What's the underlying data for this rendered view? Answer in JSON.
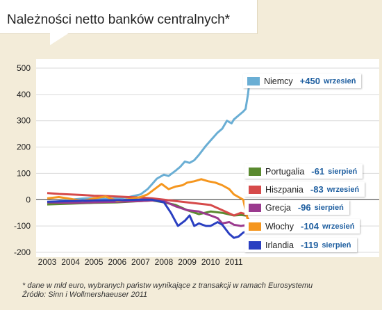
{
  "title": "Należności netto banków centralnych*",
  "footnote": {
    "line1": "* dane w mld  euro, wybranych państw wynikające z transakcji w ramach Eurosystemu",
    "line2": "Źródło: Sinn i Wollmershaeuser 2011"
  },
  "chart_data": {
    "type": "line",
    "title": "Należności netto banków centralnych*",
    "xlabel": "",
    "ylabel": "",
    "ylim": [
      -200,
      500
    ],
    "xlim": [
      2003.0,
      2011.75
    ],
    "y_ticks": [
      500,
      400,
      300,
      200,
      100,
      0,
      -100,
      -200
    ],
    "x_tick_labels": [
      "2003",
      "2004",
      "2005",
      "2006",
      "2007",
      "2008",
      "2009",
      "2010",
      "2011"
    ],
    "grid": true,
    "legend_position": "right",
    "series": [
      {
        "name": "Niemcy",
        "value_label": "+450",
        "month_label": "wrzesień",
        "color": "#6aaed4",
        "x": [
          2003.0,
          2003.5,
          2004.0,
          2004.5,
          2005.0,
          2005.5,
          2006.0,
          2006.5,
          2007.0,
          2007.3,
          2007.5,
          2007.7,
          2008.0,
          2008.2,
          2008.5,
          2008.7,
          2008.9,
          2009.1,
          2009.3,
          2009.5,
          2009.8,
          2010.0,
          2010.3,
          2010.5,
          2010.7,
          2010.9,
          2011.0,
          2011.2,
          2011.4,
          2011.5,
          2011.6,
          2011.67
        ],
        "y": [
          -10,
          -6,
          0,
          4,
          6,
          3,
          5,
          10,
          20,
          40,
          60,
          80,
          95,
          90,
          110,
          125,
          145,
          140,
          150,
          170,
          205,
          225,
          255,
          270,
          300,
          290,
          305,
          320,
          335,
          345,
          400,
          450
        ]
      },
      {
        "name": "Portugalia",
        "value_label": "-61",
        "month_label": "sierpień",
        "color": "#5a8a2f",
        "x": [
          2003.0,
          2004.0,
          2005.0,
          2006.0,
          2007.0,
          2007.5,
          2008.0,
          2008.5,
          2009.0,
          2009.5,
          2010.0,
          2010.5,
          2011.0,
          2011.3,
          2011.58
        ],
        "y": [
          -18,
          -15,
          -12,
          -10,
          -5,
          -3,
          -10,
          -20,
          -40,
          -55,
          -45,
          -50,
          -60,
          -58,
          -61
        ]
      },
      {
        "name": "Hiszpania",
        "value_label": "-83",
        "month_label": "wrzesień",
        "color": "#d64a4a",
        "x": [
          2003.0,
          2003.5,
          2004.0,
          2004.5,
          2005.0,
          2005.5,
          2006.0,
          2006.5,
          2007.0,
          2007.5,
          2008.0,
          2008.5,
          2009.0,
          2009.5,
          2010.0,
          2010.5,
          2011.0,
          2011.3,
          2011.5,
          2011.67
        ],
        "y": [
          25,
          22,
          20,
          18,
          15,
          14,
          12,
          10,
          8,
          5,
          0,
          -5,
          -10,
          -15,
          -20,
          -40,
          -60,
          -50,
          -55,
          -83
        ]
      },
      {
        "name": "Grecja",
        "value_label": "-96",
        "month_label": "sierpień",
        "color": "#9a3a8e",
        "x": [
          2003.0,
          2004.0,
          2005.0,
          2006.0,
          2007.0,
          2007.5,
          2008.0,
          2008.5,
          2009.0,
          2009.5,
          2010.0,
          2010.3,
          2010.5,
          2010.8,
          2011.0,
          2011.3,
          2011.58
        ],
        "y": [
          -10,
          -12,
          -10,
          -8,
          -5,
          -3,
          -5,
          -25,
          -40,
          -45,
          -60,
          -70,
          -90,
          -85,
          -95,
          -100,
          -96
        ]
      },
      {
        "name": "Włochy",
        "value_label": "-104",
        "month_label": "wrzesień",
        "color": "#f5961e",
        "x": [
          2003.0,
          2003.5,
          2004.0,
          2004.5,
          2005.0,
          2005.5,
          2006.0,
          2006.5,
          2007.0,
          2007.3,
          2007.6,
          2007.9,
          2008.2,
          2008.5,
          2008.8,
          2009.0,
          2009.3,
          2009.6,
          2009.9,
          2010.2,
          2010.5,
          2010.8,
          2011.0,
          2011.2,
          2011.4,
          2011.55,
          2011.67
        ],
        "y": [
          5,
          10,
          3,
          -5,
          5,
          12,
          -5,
          2,
          10,
          20,
          40,
          60,
          40,
          50,
          55,
          65,
          70,
          78,
          70,
          65,
          55,
          40,
          20,
          10,
          0,
          -60,
          -104
        ]
      },
      {
        "name": "Irlandia",
        "value_label": "-119",
        "month_label": "sierpień",
        "color": "#2a3fc1",
        "x": [
          2003.0,
          2004.0,
          2005.0,
          2006.0,
          2007.0,
          2007.5,
          2008.0,
          2008.3,
          2008.6,
          2008.9,
          2009.1,
          2009.3,
          2009.5,
          2009.8,
          2010.0,
          2010.3,
          2010.5,
          2010.8,
          2011.0,
          2011.2,
          2011.4,
          2011.58
        ],
        "y": [
          -8,
          -5,
          -3,
          -2,
          0,
          0,
          -10,
          -50,
          -100,
          -80,
          -60,
          -100,
          -90,
          -100,
          -100,
          -85,
          -95,
          -130,
          -145,
          -140,
          -125,
          -119
        ]
      }
    ]
  }
}
